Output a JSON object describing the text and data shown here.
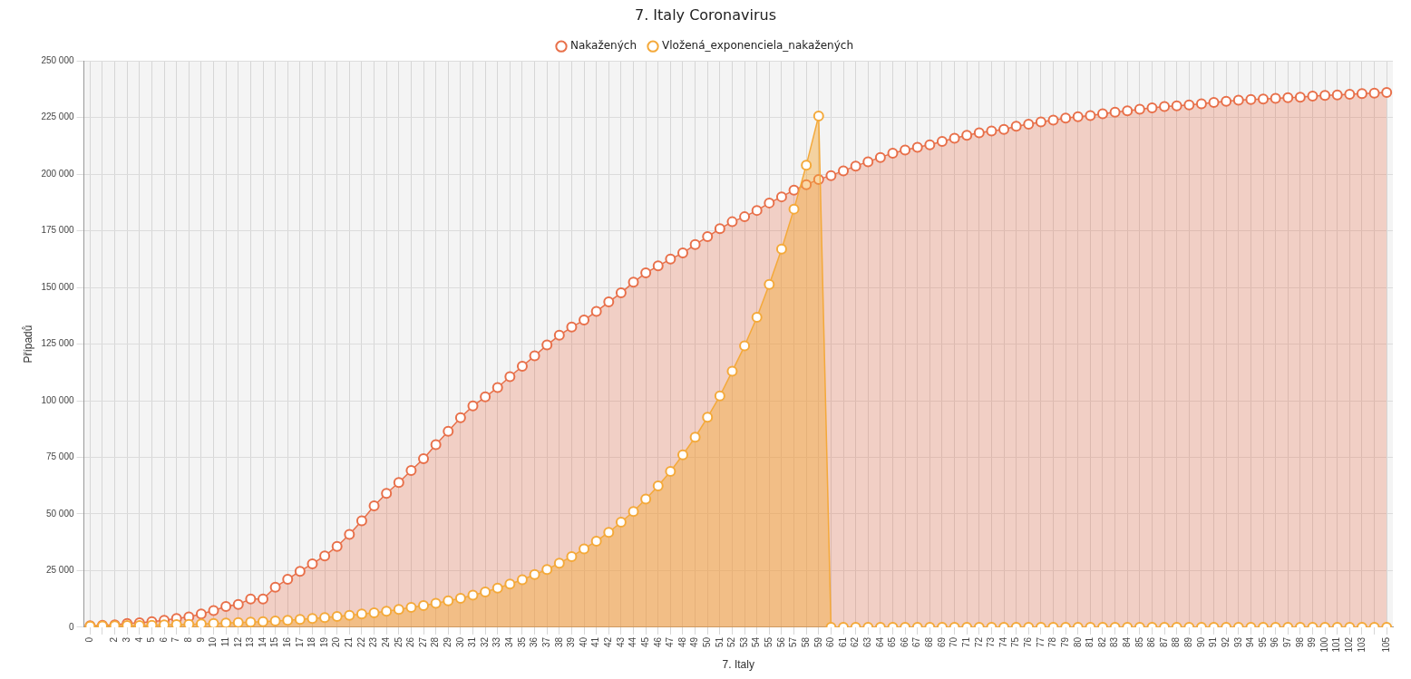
{
  "chart_data": {
    "type": "area",
    "title": "7. Italy Coronavirus",
    "xlabel": "7. Italy",
    "ylabel": "Případů",
    "categories": [
      "0",
      null,
      "2",
      "3",
      "4",
      "5",
      "6",
      "7",
      "8",
      "9",
      "10",
      "11",
      "12",
      "13",
      "14",
      "15",
      "16",
      "17",
      "18",
      "19",
      "20",
      "21",
      "22",
      "23",
      "24",
      "25",
      "26",
      "27",
      "28",
      "29",
      "30",
      "31",
      "32",
      "33",
      "34",
      "35",
      "36",
      "37",
      "38",
      "39",
      "40",
      "41",
      "42",
      "43",
      "44",
      "45",
      "46",
      "47",
      "48",
      "49",
      "50",
      "51",
      "52",
      "53",
      "54",
      "55",
      "56",
      "57",
      "58",
      "59",
      "60",
      "61",
      "62",
      "63",
      "64",
      "65",
      "66",
      "67",
      "68",
      "69",
      "70",
      "71",
      "72",
      "73",
      "74",
      "75",
      "76",
      "77",
      "78",
      "79",
      "80",
      "81",
      "82",
      "83",
      "84",
      "85",
      "86",
      "87",
      "88",
      "89",
      "90",
      "91",
      "92",
      "93",
      "94",
      "95",
      "96",
      "97",
      "98",
      "99",
      "100",
      "101",
      "102",
      "103",
      null,
      "105"
    ],
    "series": [
      {
        "name": "Nakažených",
        "color": "#e8704a",
        "values": [
          700,
          900,
          1100,
          1700,
          2000,
          2500,
          3100,
          3900,
          4600,
          5900,
          7400,
          9200,
          10100,
          12500,
          12500,
          17700,
          21200,
          24700,
          28000,
          31500,
          35700,
          41000,
          47000,
          53600,
          59100,
          63900,
          69200,
          74400,
          80600,
          86500,
          92500,
          97700,
          101700,
          105800,
          110600,
          115200,
          119800,
          124600,
          128900,
          132500,
          135600,
          139400,
          143600,
          147600,
          152300,
          156400,
          159500,
          162500,
          165200,
          168900,
          172400,
          175900,
          179000,
          181200,
          184000,
          187300,
          190000,
          193000,
          195400,
          197700,
          199400,
          201500,
          203600,
          205500,
          207400,
          209300,
          210700,
          211900,
          213000,
          214500,
          215900,
          217200,
          218300,
          219100,
          219800,
          221200,
          222100,
          223100,
          223900,
          224800,
          225400,
          225900,
          226700,
          227400,
          228000,
          228700,
          229300,
          229900,
          230200,
          230600,
          231100,
          231700,
          232200,
          232700,
          233000,
          233200,
          233500,
          233800,
          234000,
          234500,
          234800,
          235000,
          235300,
          235600,
          235800,
          236100
        ]
      },
      {
        "name": "Vložená_exponenciela_nakažených",
        "color": "#f4a93a",
        "values": [
          500,
          600,
          700,
          800,
          800,
          900,
          1100,
          1200,
          1300,
          1500,
          1700,
          1900,
          2100,
          2300,
          2500,
          2800,
          3100,
          3500,
          3900,
          4300,
          4800,
          5300,
          5900,
          6400,
          7100,
          7900,
          8800,
          9600,
          10600,
          11700,
          12800,
          14200,
          15600,
          17300,
          19100,
          21000,
          23300,
          25500,
          28300,
          31200,
          34600,
          38000,
          41900,
          46400,
          51100,
          56600,
          62400,
          68800,
          76100,
          83900,
          92700,
          102100,
          113000,
          124200,
          136800,
          151300,
          166900,
          184600,
          204000,
          225700,
          0,
          0,
          0,
          0,
          0,
          0,
          0,
          0,
          0,
          0,
          0,
          0,
          0,
          0,
          0,
          0,
          0,
          0,
          0,
          0,
          0,
          0,
          0,
          0,
          0,
          0,
          0,
          0,
          0,
          0,
          0,
          0,
          0,
          0,
          0,
          0,
          0,
          0,
          0,
          0,
          0,
          0,
          0,
          0,
          0,
          0
        ]
      }
    ],
    "ylim": [
      0,
      250000
    ],
    "yticks": [
      {
        "value": 0,
        "label": "0"
      },
      {
        "value": 25000,
        "label": "25 000"
      },
      {
        "value": 50000,
        "label": "50 000"
      },
      {
        "value": 75000,
        "label": "75 000"
      },
      {
        "value": 100000,
        "label": "100 000"
      },
      {
        "value": 125000,
        "label": "125 000"
      },
      {
        "value": 150000,
        "label": "150 000"
      },
      {
        "value": 175000,
        "label": "175 000"
      },
      {
        "value": 200000,
        "label": "200 000"
      },
      {
        "value": 225000,
        "label": "225 000"
      },
      {
        "value": 250000,
        "label": "250 000"
      }
    ],
    "grid": true,
    "legend": "top",
    "marker": "circle",
    "line_style": "solid"
  }
}
